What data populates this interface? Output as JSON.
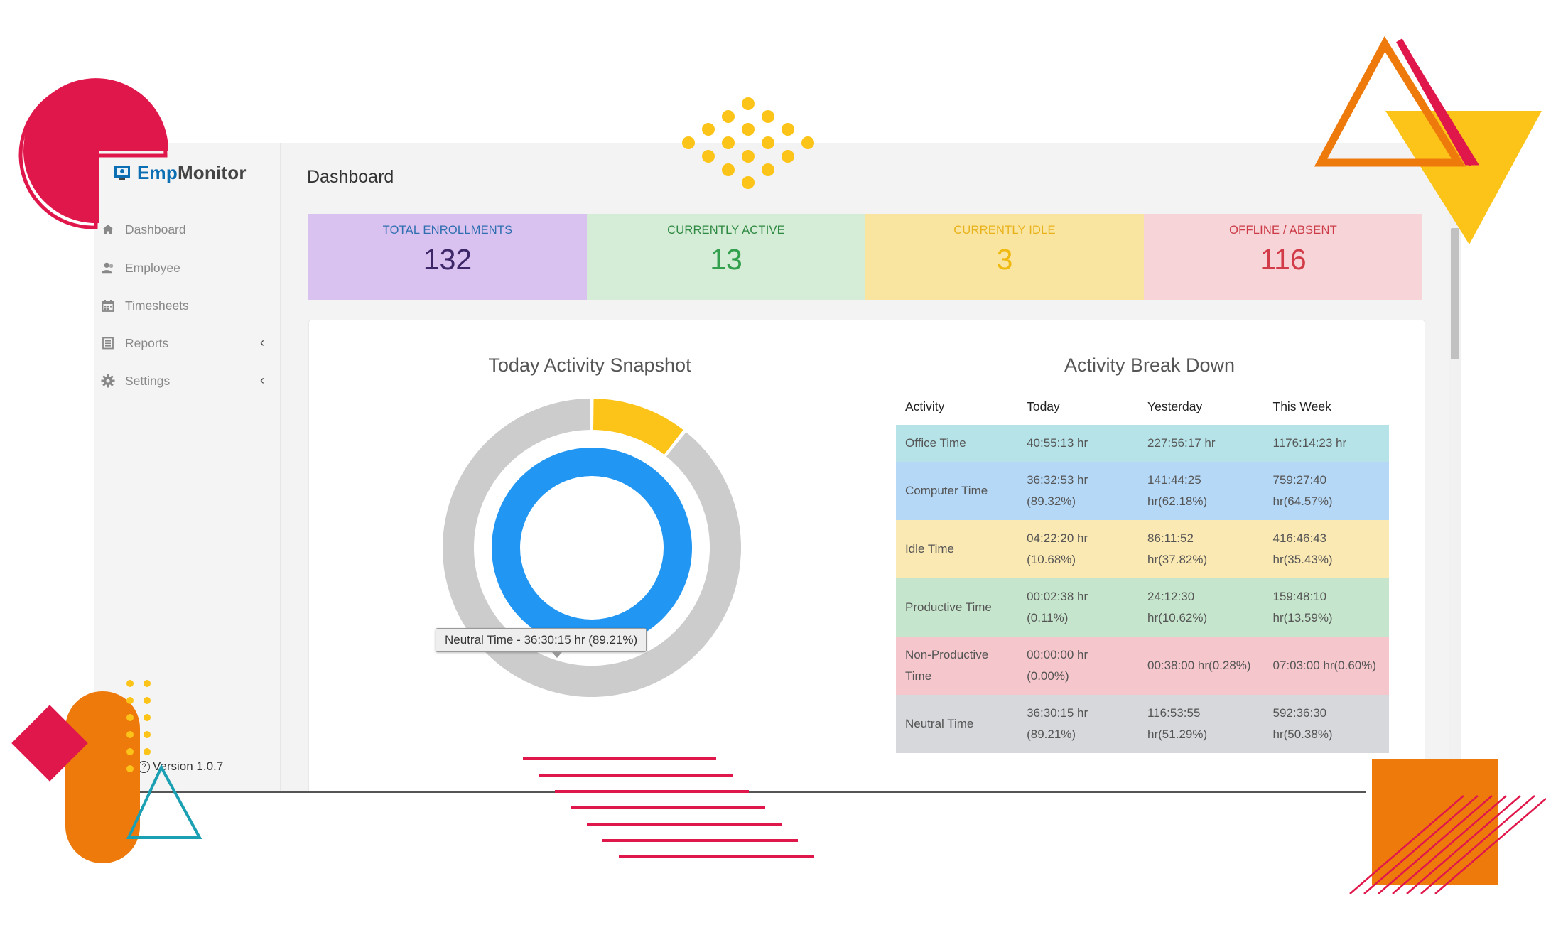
{
  "brand": {
    "part1": "Emp",
    "part2": "Monitor",
    "color": "#0c6fb3"
  },
  "sidebar": {
    "items": [
      {
        "label": "Dashboard",
        "icon": "home-icon"
      },
      {
        "label": "Employee",
        "icon": "users-icon"
      },
      {
        "label": "Timesheets",
        "icon": "calendar-icon"
      },
      {
        "label": "Reports",
        "icon": "document-icon",
        "has_submenu": true
      },
      {
        "label": "Settings",
        "icon": "gear-icon",
        "has_submenu": true
      }
    ],
    "version": "Version 1.0.7"
  },
  "page": {
    "title": "Dashboard"
  },
  "stats": [
    {
      "label": "TOTAL ENROLLMENTS",
      "value": "132",
      "bg": "#d9c2ef",
      "label_color": "#2f6fb1",
      "value_color": "#3d2768"
    },
    {
      "label": "CURRENTLY ACTIVE",
      "value": "13",
      "bg": "#d5ecd6",
      "label_color": "#2e8a43",
      "value_color": "#33a04d"
    },
    {
      "label": "CURRENTLY IDLE",
      "value": "3",
      "bg": "#f9e5a0",
      "label_color": "#e9b21b",
      "value_color": "#f0b90f"
    },
    {
      "label": "OFFLINE / ABSENT",
      "value": "116",
      "bg": "#f6d4d7",
      "label_color": "#cc3b47",
      "value_color": "#d23c48"
    }
  ],
  "snapshot": {
    "title": "Today Activity Snapshot",
    "tooltip": "Neutral Time - 36:30:15 hr (89.21%)"
  },
  "chart_data": {
    "type": "pie",
    "title": "Today Activity Snapshot",
    "rings": [
      {
        "name": "Computer Time",
        "slices": [
          {
            "label": "Computer Time",
            "value": 100,
            "color": "#2196f3"
          }
        ]
      },
      {
        "name": "Outer",
        "slices": [
          {
            "label": "Idle Time",
            "value": 10.68,
            "color": "#fcc419"
          },
          {
            "label": "Neutral Time",
            "value": 89.21,
            "color": "#cccccc"
          }
        ]
      }
    ]
  },
  "breakdown": {
    "title": "Activity Break Down",
    "columns": [
      "Activity",
      "Today",
      "Yesterday",
      "This Week"
    ],
    "rows": [
      {
        "cells": [
          "Office Time",
          "40:55:13 hr",
          "227:56:17 hr",
          "1176:14:23 hr"
        ],
        "bg": "#b5e3e8"
      },
      {
        "cells": [
          "Computer Time",
          "36:32:53 hr (89.32%)",
          "141:44:25 hr(62.18%)",
          "759:27:40 hr(64.57%)"
        ],
        "bg": "#b5d8f7"
      },
      {
        "cells": [
          "Idle Time",
          "04:22:20 hr (10.68%)",
          "86:11:52 hr(37.82%)",
          "416:46:43 hr(35.43%)"
        ],
        "bg": "#fbe9b3"
      },
      {
        "cells": [
          "Productive Time",
          "00:02:38 hr (0.11%)",
          "24:12:30 hr(10.62%)",
          "159:48:10 hr(13.59%)"
        ],
        "bg": "#c6e5cd"
      },
      {
        "cells": [
          "Non-Productive Time",
          "00:00:00 hr (0.00%)",
          "00:38:00 hr(0.28%)",
          "07:03:00 hr(0.60%)"
        ],
        "bg": "#f5c6cb"
      },
      {
        "cells": [
          "Neutral Time",
          "36:30:15 hr (89.21%)",
          "116:53:55 hr(51.29%)",
          "592:36:30 hr(50.38%)"
        ],
        "bg": "#d6d8db"
      }
    ]
  }
}
